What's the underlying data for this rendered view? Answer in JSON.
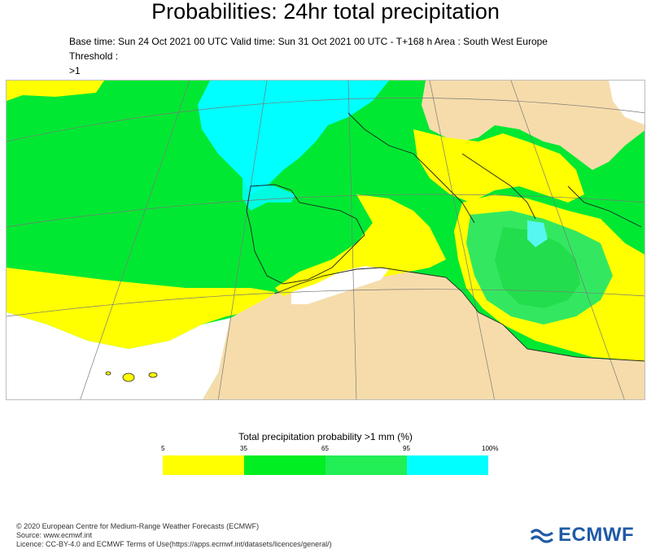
{
  "title": "Probabilities: 24hr total precipitation",
  "subtitle_line1": "Base time: Sun 24 Oct 2021 00 UTC Valid time: Sun 31 Oct 2021 00 UTC - T+168 h Area : South West Europe Threshold :",
  "subtitle_line2": ">1",
  "legend": {
    "title": "Total precipitation probability >1 mm (%)",
    "ticks": [
      "5",
      "35",
      "65",
      "95",
      "100%"
    ],
    "colors": [
      "#ffff00",
      "#00ee22",
      "#22ee55",
      "#00ffff"
    ]
  },
  "palette": {
    "land": "#f6dcab",
    "yellow": "#ffff00",
    "green": "#00e832",
    "mid_green": "#33e860",
    "cyan": "#00ffff",
    "white": "#ffffff"
  },
  "footer": {
    "copyright": "© 2020 European Centre for Medium-Range Weather Forecasts (ECMWF)",
    "source": "Source: www.ecmwf.int",
    "licence": "Licence: CC-BY-4.0 and ECMWF Terms of Use(https://apps.ecmwf.int/datasets/licences/general/)"
  },
  "logo": {
    "text": "ECMWF",
    "icon": "ecmwf-wave-icon"
  }
}
